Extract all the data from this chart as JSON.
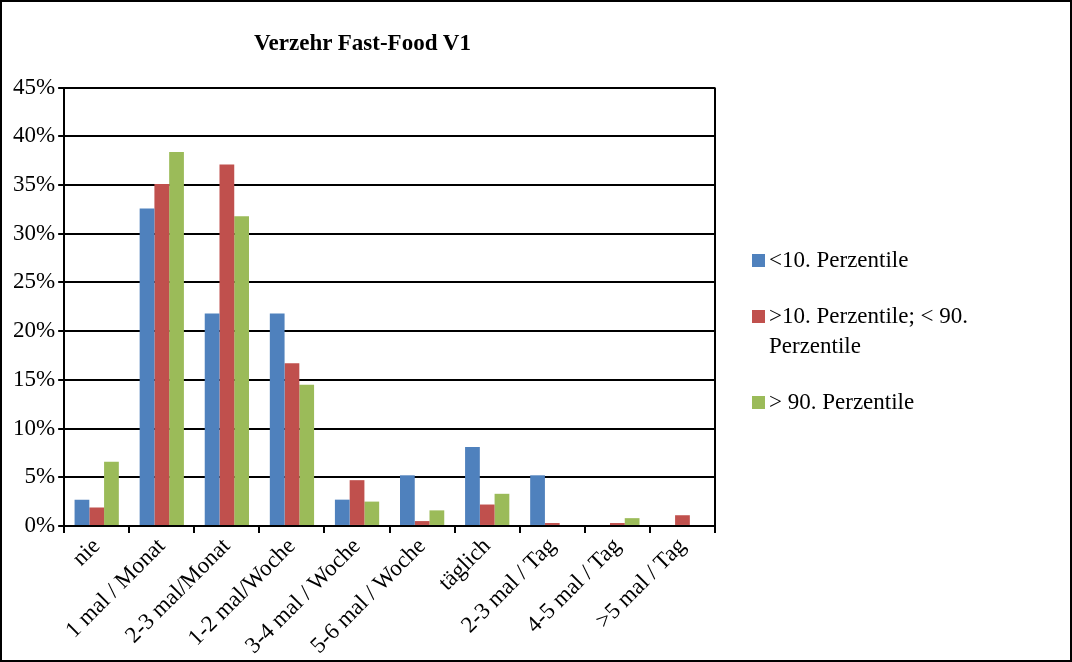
{
  "chart_data": {
    "type": "bar",
    "title": "Verzehr Fast-Food V1",
    "categories": [
      "nie",
      "1 mal / Monat",
      "2-3 mal/Monat",
      "1-2 mal/Woche",
      "3-4 mal / Woche",
      "5-6 mal / Woche",
      "täglich",
      "2-3 mal / Tag",
      "4-5 mal / Tag",
      ">5 mal / Tag"
    ],
    "series": [
      {
        "name": "<10. Perzentile",
        "color": "#4f81bd",
        "values": [
          2.7,
          32.6,
          21.8,
          21.8,
          2.7,
          5.2,
          8.1,
          5.2,
          0,
          0
        ]
      },
      {
        "name": ">10. Perzentile; < 90. Perzentile",
        "color": "#c0504d",
        "values": [
          1.9,
          35.1,
          37.1,
          16.7,
          4.7,
          0.5,
          2.2,
          0.3,
          0.3,
          1.1
        ]
      },
      {
        "name": "> 90. Perzentile",
        "color": "#9bbb59",
        "values": [
          6.6,
          38.4,
          31.8,
          14.5,
          2.5,
          1.6,
          3.3,
          0,
          0.8,
          0
        ]
      }
    ],
    "ylim": [
      0,
      45
    ],
    "yticks": [
      {
        "value": 0,
        "label": "0%"
      },
      {
        "value": 5,
        "label": "5%"
      },
      {
        "value": 10,
        "label": "10%"
      },
      {
        "value": 15,
        "label": "15%"
      },
      {
        "value": 20,
        "label": "20%"
      },
      {
        "value": 25,
        "label": "25%"
      },
      {
        "value": 30,
        "label": "30%"
      },
      {
        "value": 35,
        "label": "35%"
      },
      {
        "value": 40,
        "label": "40%"
      },
      {
        "value": 45,
        "label": "45%"
      }
    ],
    "grid": "y",
    "legend": "right"
  }
}
